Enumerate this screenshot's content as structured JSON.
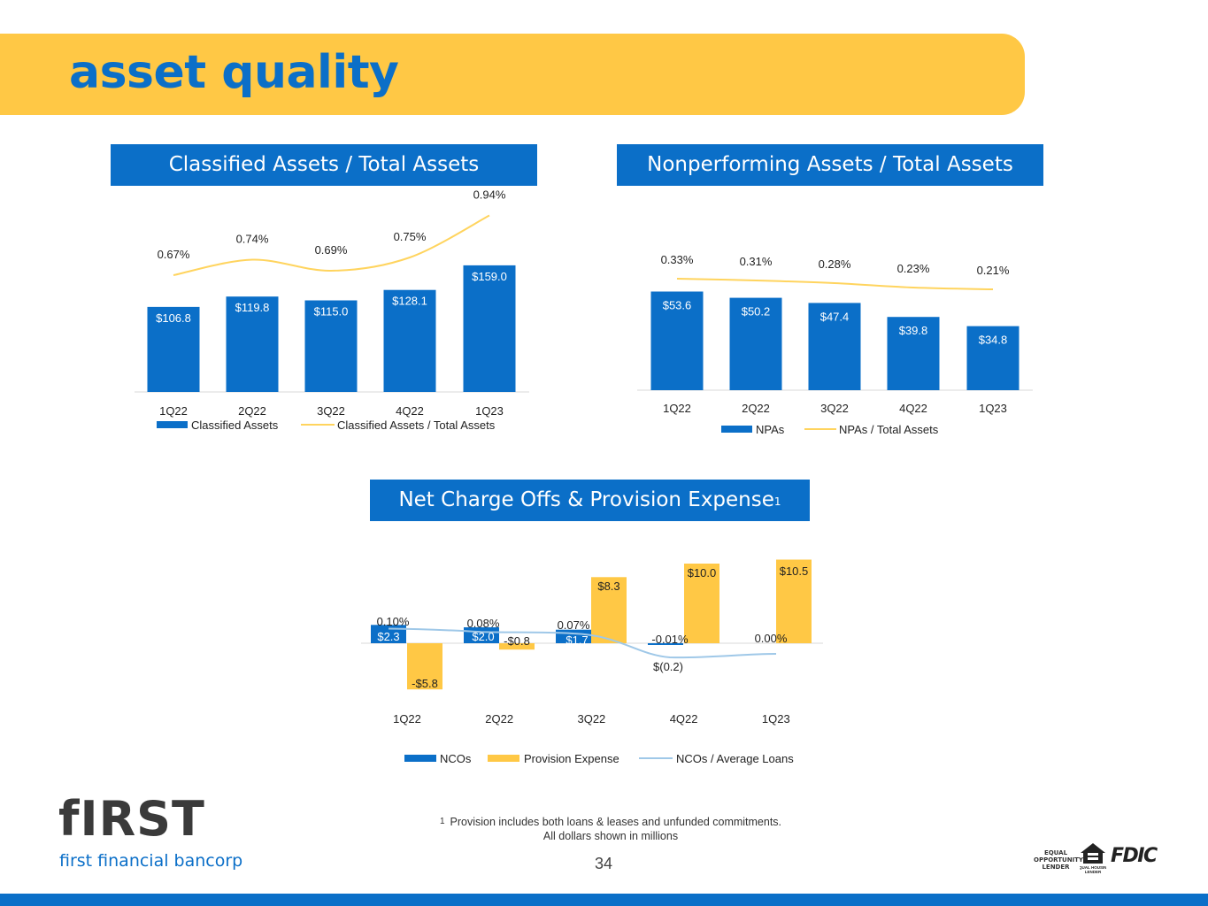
{
  "page": {
    "title": "asset quality",
    "page_number": "34",
    "footnote_marker": "1",
    "footnote_line1": "Provision includes both loans & leases and unfunded commitments.",
    "footnote_line2": "All dollars shown in millions"
  },
  "logo": {
    "wordmark": "fIRST",
    "name": "first financial bancorp"
  },
  "badges": {
    "equal_opportunity": "EQUAL OPPORTUNITY LENDER",
    "equal_housing": "EQUAL HOUSING LENDER",
    "fdic": "FDIC"
  },
  "colors": {
    "brand_blue": "#0B6FC8",
    "brand_yellow": "#FFC845",
    "line_yellow": "#FFD45E",
    "line_lightblue": "#9FC8E8"
  },
  "chart_data": [
    {
      "id": "classified",
      "type": "bar",
      "title": "Classified Assets / Total Assets",
      "categories": [
        "1Q22",
        "2Q22",
        "3Q22",
        "4Q22",
        "1Q23"
      ],
      "series": [
        {
          "name": "Classified Assets",
          "kind": "bar",
          "values": [
            106.8,
            119.8,
            115.0,
            128.1,
            159.0
          ],
          "labels": [
            "$106.8",
            "$119.8",
            "$115.0",
            "$128.1",
            "$159.0"
          ]
        },
        {
          "name": "Classified Assets / Total Assets",
          "kind": "line",
          "values": [
            0.67,
            0.74,
            0.69,
            0.75,
            0.94
          ],
          "labels": [
            "0.67%",
            "0.74%",
            "0.69%",
            "0.75%",
            "0.94%"
          ]
        }
      ],
      "legend_position": "bottom",
      "grid": false
    },
    {
      "id": "nonperforming",
      "type": "bar",
      "title": "Nonperforming Assets / Total Assets",
      "categories": [
        "1Q22",
        "2Q22",
        "3Q22",
        "4Q22",
        "1Q23"
      ],
      "series": [
        {
          "name": "NPAs",
          "kind": "bar",
          "values": [
            53.6,
            50.2,
            47.4,
            39.8,
            34.8
          ],
          "labels": [
            "$53.6",
            "$50.2",
            "$47.4",
            "$39.8",
            "$34.8"
          ]
        },
        {
          "name": "NPAs / Total Assets",
          "kind": "line",
          "values": [
            0.33,
            0.31,
            0.28,
            0.23,
            0.21
          ],
          "labels": [
            "0.33%",
            "0.31%",
            "0.28%",
            "0.23%",
            "0.21%"
          ]
        }
      ],
      "legend_position": "bottom",
      "grid": false
    },
    {
      "id": "nco",
      "type": "bar",
      "title": "Net Charge Offs & Provision Expense",
      "title_superscript": "1",
      "categories": [
        "1Q22",
        "2Q22",
        "3Q22",
        "4Q22",
        "1Q23"
      ],
      "series": [
        {
          "name": "NCOs",
          "kind": "bar",
          "values": [
            2.3,
            2.0,
            1.7,
            -0.2,
            0.0
          ],
          "labels": [
            "$2.3",
            "$2.0",
            "$1.7",
            "$(0.2)",
            ""
          ]
        },
        {
          "name": "Provision Expense",
          "kind": "bar",
          "values": [
            -5.8,
            -0.8,
            8.3,
            10.0,
            10.5
          ],
          "labels": [
            "-$5.8",
            "-$0.8",
            "$8.3",
            "$10.0",
            "$10.5"
          ]
        },
        {
          "name": "NCOs / Average Loans",
          "kind": "line",
          "values": [
            0.1,
            0.08,
            0.07,
            -0.01,
            0.0
          ],
          "labels": [
            "0.10%",
            "0.08%",
            "0.07%",
            "-0.01%",
            "0.00%"
          ]
        }
      ],
      "legend_position": "bottom",
      "grid": false
    }
  ]
}
